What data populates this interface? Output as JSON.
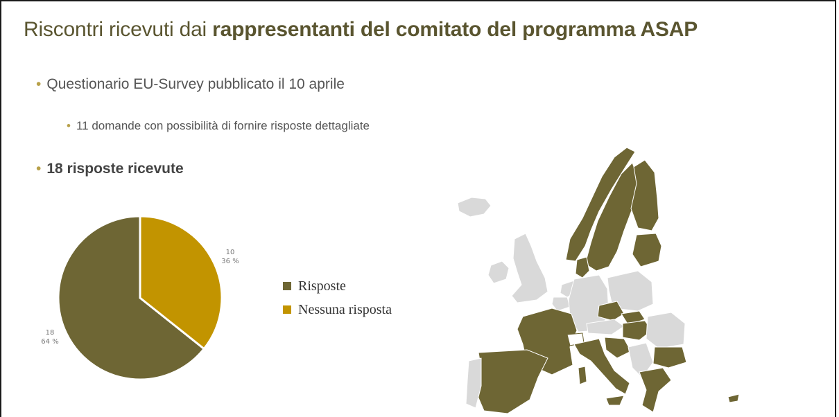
{
  "slide": {
    "title_prefix": "Riscontri ricevuti dai ",
    "title_bold": "rappresentanti del comitato del programma ASAP",
    "bullets": [
      "Questionario EU-Survey pubblicato il 10 aprile",
      "11 domande con possibilità di fornire risposte dettagliate",
      "18 risposte ricevute"
    ]
  },
  "chart_data": {
    "type": "pie",
    "categories": [
      "Risposte",
      "Nessuna risposta"
    ],
    "values": [
      18,
      10
    ],
    "percentages": [
      "64 %",
      "36 %"
    ],
    "colors": [
      "#6e6634",
      "#c29400"
    ],
    "legend_position": "right"
  },
  "map": {
    "responded_color": "#6e6634",
    "not_responded_color": "#d9d9d9"
  }
}
